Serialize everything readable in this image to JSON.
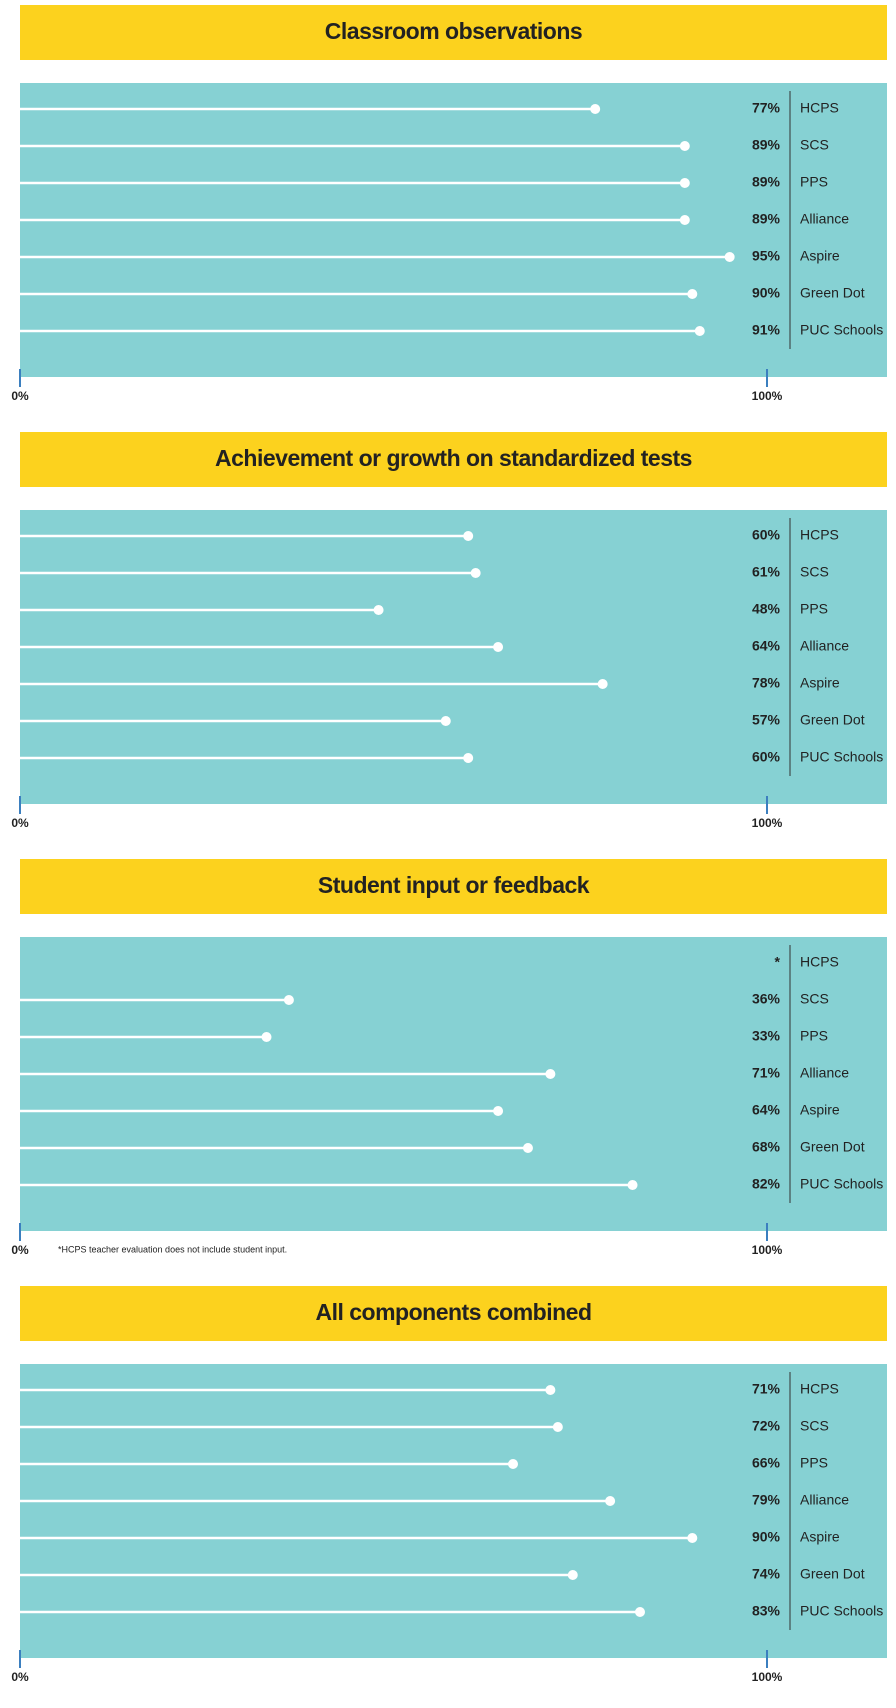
{
  "chart_data": [
    {
      "type": "lollipop",
      "title": "Classroom observations",
      "categories": [
        "HCPS",
        "SCS",
        "PPS",
        "Alliance",
        "Aspire",
        "Green Dot",
        "PUC Schools"
      ],
      "values": [
        77,
        89,
        89,
        89,
        95,
        90,
        91
      ],
      "value_labels": [
        "77%",
        "89%",
        "89%",
        "89%",
        "95%",
        "90%",
        "91%"
      ],
      "color": "#ffffff",
      "xlim": [
        0,
        100
      ],
      "xticks": [
        {
          "value": 0,
          "label": "0%"
        },
        {
          "value": 100,
          "label": "100%"
        }
      ]
    },
    {
      "type": "lollipop",
      "title": "Achievement or growth on standardized tests",
      "categories": [
        "HCPS",
        "SCS",
        "PPS",
        "Alliance",
        "Aspire",
        "Green Dot",
        "PUC Schools"
      ],
      "values": [
        60,
        61,
        48,
        64,
        78,
        57,
        60
      ],
      "value_labels": [
        "60%",
        "61%",
        "48%",
        "64%",
        "78%",
        "57%",
        "60%"
      ],
      "color": "#ffffff",
      "xlim": [
        0,
        100
      ],
      "xticks": [
        {
          "value": 0,
          "label": "0%"
        },
        {
          "value": 100,
          "label": "100%"
        }
      ]
    },
    {
      "type": "lollipop",
      "title": "Student input or feedback",
      "categories": [
        "HCPS",
        "SCS",
        "PPS",
        "Alliance",
        "Aspire",
        "Green Dot",
        "PUC Schools"
      ],
      "values": [
        null,
        36,
        33,
        71,
        64,
        68,
        82
      ],
      "value_labels": [
        "*",
        "36%",
        "33%",
        "71%",
        "64%",
        "68%",
        "82%"
      ],
      "color": "#ffffff",
      "xlim": [
        0,
        100
      ],
      "xticks": [
        {
          "value": 0,
          "label": "0%"
        },
        {
          "value": 100,
          "label": "100%"
        }
      ],
      "annotation": "*HCPS teacher evaluation does not include student input."
    },
    {
      "type": "lollipop",
      "title": "All components combined",
      "categories": [
        "HCPS",
        "SCS",
        "PPS",
        "Alliance",
        "Aspire",
        "Green Dot",
        "PUC Schools"
      ],
      "values": [
        71,
        72,
        66,
        79,
        90,
        74,
        83
      ],
      "value_labels": [
        "71%",
        "72%",
        "66%",
        "79%",
        "90%",
        "74%",
        "83%"
      ],
      "color": "#ffffff",
      "xlim": [
        0,
        100
      ],
      "xticks": [
        {
          "value": 0,
          "label": "0%"
        },
        {
          "value": 100,
          "label": "100%"
        }
      ]
    }
  ]
}
